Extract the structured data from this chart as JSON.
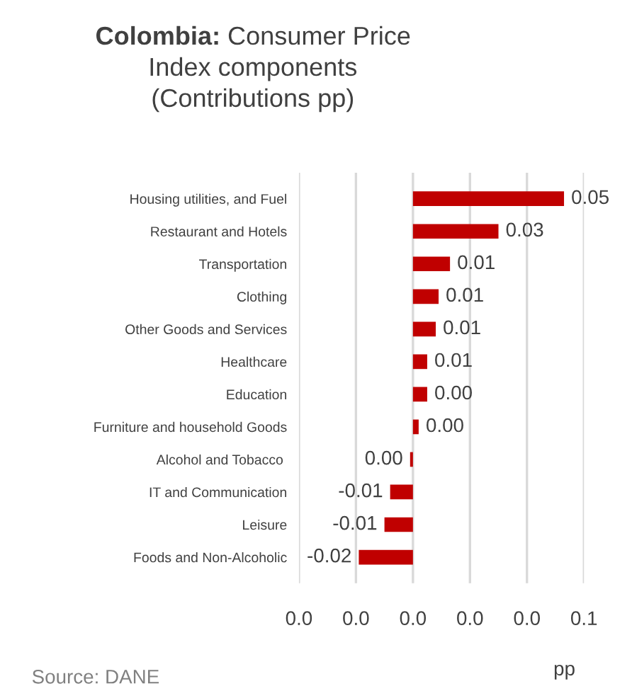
{
  "chart_data": {
    "type": "bar",
    "orientation": "horizontal",
    "title": "Colombia: Consumer Price Index components (Contributions pp)",
    "categories": [
      "Housing utilities, and Fuel",
      "Restaurant and Hotels",
      "Transportation",
      "Clothing",
      "Other Goods and Services",
      "Healthcare",
      "Education",
      "Furniture and household Goods",
      "Alcohol and Tobacco ",
      "IT and Communication",
      "Leisure",
      "Foods and Non-Alcoholic"
    ],
    "values": [
      0.053,
      0.03,
      0.013,
      0.009,
      0.008,
      0.005,
      0.005,
      0.002,
      -0.001,
      -0.008,
      -0.01,
      -0.019
    ],
    "value_labels": [
      "0.05",
      "0.03",
      "0.01",
      "0.01",
      "0.01",
      "0.01",
      "0.00",
      "0.00",
      "0.00",
      "-0.01",
      "-0.01",
      "-0.02"
    ],
    "color": "#c00000",
    "xlim": [
      -0.04,
      0.06
    ],
    "xticks": [
      {
        "value": -0.04,
        "label": "0.0"
      },
      {
        "value": -0.02,
        "label": "0.0"
      },
      {
        "value": 0,
        "label": "0.0"
      },
      {
        "value": 0.02,
        "label": "0.0"
      },
      {
        "value": 0.04,
        "label": "0.0"
      },
      {
        "value": 0.06,
        "label": "0.1"
      }
    ],
    "xlabel": "pp",
    "grid": "x",
    "annotations": [
      "Source: DANE"
    ]
  }
}
